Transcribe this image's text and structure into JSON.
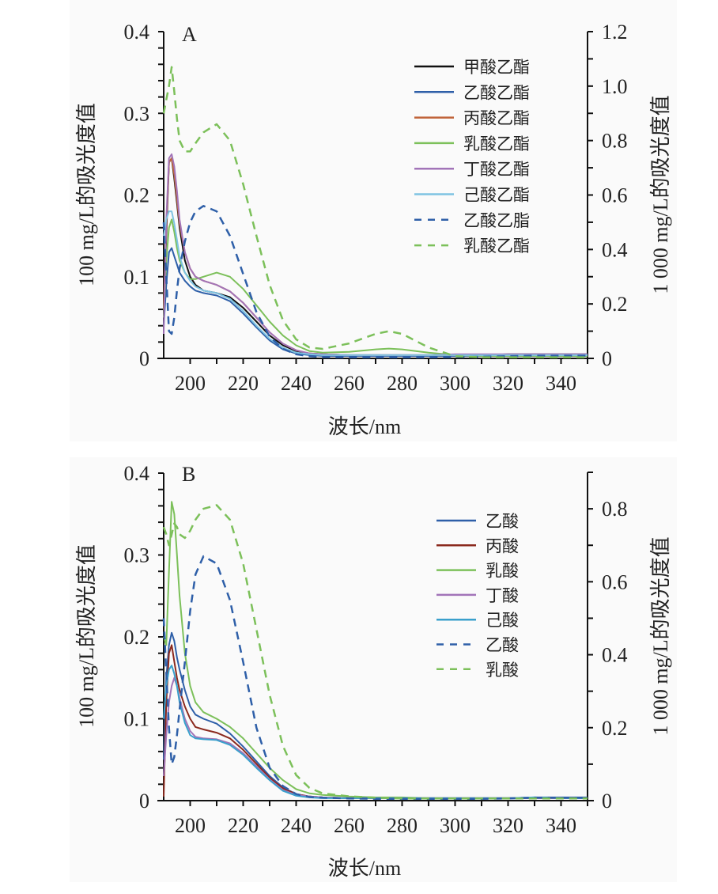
{
  "chart_data": [
    {
      "type": "line",
      "panel_label": "A",
      "xlabel": "波长/nm",
      "ylabel": "100 mg/L的吸光度值",
      "y2label": "1 000 mg/L的吸光度值",
      "xlim": [
        190,
        350
      ],
      "ylim": [
        0,
        0.4
      ],
      "y2lim": [
        0,
        1.2
      ],
      "xticks": [
        200,
        220,
        240,
        260,
        280,
        300,
        320,
        340
      ],
      "xtick_labels": [
        "200",
        "220",
        "240",
        "260",
        "280",
        "300",
        "320",
        "340"
      ],
      "yticks": [
        0,
        0.1,
        0.2,
        0.3,
        0.4
      ],
      "ytick_labels": [
        "0",
        "0.1",
        "0.2",
        "0.3",
        "0.4"
      ],
      "y2ticks": [
        0,
        0.2,
        0.4,
        0.6,
        0.8,
        1.0,
        1.2
      ],
      "y2tick_labels": [
        "0",
        "0.2",
        "0.4",
        "0.6",
        "0.8",
        "1.0",
        "1.2"
      ],
      "legend_position": "top-right",
      "x": [
        190,
        191,
        192,
        193,
        194,
        195,
        196,
        198,
        200,
        202,
        205,
        210,
        215,
        220,
        225,
        230,
        235,
        240,
        245,
        250,
        260,
        270,
        275,
        280,
        290,
        300,
        310,
        320,
        330,
        340,
        350
      ],
      "series": [
        {
          "name": "甲酸乙酯",
          "color": "#111111",
          "dash": "solid",
          "axis": "left",
          "values": [
            0.05,
            0.15,
            0.24,
            0.245,
            0.22,
            0.19,
            0.16,
            0.12,
            0.1,
            0.09,
            0.083,
            0.08,
            0.075,
            0.062,
            0.045,
            0.028,
            0.016,
            0.009,
            0.006,
            0.005,
            0.004,
            0.004,
            0.004,
            0.004,
            0.004,
            0.004,
            0.004,
            0.005,
            0.005,
            0.005,
            0.005
          ]
        },
        {
          "name": "乙酸乙酯",
          "color": "#2e5fa8",
          "dash": "solid",
          "axis": "left",
          "values": [
            0.04,
            0.09,
            0.13,
            0.135,
            0.125,
            0.115,
            0.105,
            0.095,
            0.088,
            0.083,
            0.08,
            0.077,
            0.07,
            0.055,
            0.038,
            0.022,
            0.011,
            0.006,
            0.004,
            0.003,
            0.003,
            0.003,
            0.003,
            0.003,
            0.003,
            0.003,
            0.003,
            0.003,
            0.003,
            0.003,
            0.003
          ]
        },
        {
          "name": "丙酸乙酯",
          "color": "#c0643a",
          "dash": "solid",
          "axis": "left",
          "values": [
            0.06,
            0.16,
            0.24,
            0.245,
            0.225,
            0.195,
            0.165,
            0.13,
            0.11,
            0.1,
            0.095,
            0.09,
            0.082,
            0.068,
            0.05,
            0.032,
            0.018,
            0.01,
            0.006,
            0.005,
            0.004,
            0.004,
            0.004,
            0.004,
            0.004,
            0.004,
            0.004,
            0.004,
            0.004,
            0.004,
            0.004
          ]
        },
        {
          "name": "乳酸乙酯",
          "color": "#7cc05a",
          "dash": "solid",
          "axis": "left",
          "values": [
            0.05,
            0.12,
            0.16,
            0.17,
            0.155,
            0.135,
            0.12,
            0.105,
            0.097,
            0.097,
            0.1,
            0.105,
            0.1,
            0.085,
            0.065,
            0.045,
            0.028,
            0.016,
            0.009,
            0.007,
            0.008,
            0.011,
            0.012,
            0.011,
            0.007,
            0.004,
            0.003,
            0.003,
            0.003,
            0.003,
            0.003
          ]
        },
        {
          "name": "丁酸乙酯",
          "color": "#a274b8",
          "dash": "solid",
          "axis": "left",
          "values": [
            0.03,
            0.17,
            0.245,
            0.25,
            0.235,
            0.205,
            0.17,
            0.13,
            0.11,
            0.1,
            0.095,
            0.09,
            0.082,
            0.068,
            0.05,
            0.032,
            0.018,
            0.01,
            0.006,
            0.005,
            0.004,
            0.004,
            0.004,
            0.004,
            0.004,
            0.005,
            0.005,
            0.005,
            0.005,
            0.005,
            0.005
          ]
        },
        {
          "name": "己酸乙酯",
          "color": "#7ec3e2",
          "dash": "solid",
          "axis": "left",
          "values": [
            0.15,
            0.17,
            0.18,
            0.18,
            0.165,
            0.145,
            0.125,
            0.105,
            0.095,
            0.088,
            0.083,
            0.08,
            0.073,
            0.058,
            0.04,
            0.024,
            0.013,
            0.007,
            0.005,
            0.004,
            0.004,
            0.004,
            0.004,
            0.004,
            0.004,
            0.004,
            0.004,
            0.004,
            0.004,
            0.004,
            0.004
          ]
        },
        {
          "name": "乙酸乙脂",
          "color": "#2e5fa8",
          "dash": "dashed",
          "axis": "right",
          "values": [
            0.5,
            0.3,
            0.1,
            0.09,
            0.15,
            0.25,
            0.33,
            0.43,
            0.5,
            0.54,
            0.56,
            0.54,
            0.45,
            0.31,
            0.17,
            0.08,
            0.035,
            0.015,
            0.008,
            0.005,
            0.004,
            0.004,
            0.004,
            0.004,
            0.004,
            0.005,
            0.006,
            0.008,
            0.01,
            0.01,
            0.01
          ]
        },
        {
          "name": "乳酸乙酯",
          "color": "#7cc05a",
          "dash": "dashed",
          "axis": "right",
          "values": [
            0.9,
            0.95,
            1.0,
            1.07,
            0.98,
            0.88,
            0.8,
            0.76,
            0.76,
            0.79,
            0.83,
            0.86,
            0.8,
            0.64,
            0.45,
            0.27,
            0.14,
            0.07,
            0.04,
            0.035,
            0.055,
            0.09,
            0.1,
            0.09,
            0.04,
            0.008,
            0.004,
            0.004,
            0.004,
            0.004,
            0.004
          ]
        }
      ]
    },
    {
      "type": "line",
      "panel_label": "B",
      "xlabel": "波长/nm",
      "ylabel": "100 mg/L的吸光度值",
      "y2label": "1 000 mg/L的吸光度值",
      "xlim": [
        190,
        350
      ],
      "ylim": [
        0,
        0.4
      ],
      "y2lim": [
        0,
        0.9
      ],
      "xticks": [
        200,
        220,
        240,
        260,
        280,
        300,
        320,
        340
      ],
      "xtick_labels": [
        "200",
        "220",
        "240",
        "260",
        "280",
        "300",
        "320",
        "340"
      ],
      "yticks": [
        0,
        0.1,
        0.2,
        0.3,
        0.4
      ],
      "ytick_labels": [
        "0",
        "0.1",
        "0.2",
        "0.3",
        "0.4"
      ],
      "y2ticks": [
        0,
        0.2,
        0.4,
        0.6,
        0.8
      ],
      "y2tick_labels": [
        "0",
        "0.2",
        "0.4",
        "0.6",
        "0.8"
      ],
      "legend_position": "top-right",
      "x": [
        190,
        191,
        192,
        193,
        194,
        195,
        196,
        198,
        200,
        202,
        205,
        210,
        215,
        220,
        225,
        230,
        235,
        240,
        245,
        250,
        260,
        270,
        280,
        290,
        300,
        310,
        320,
        330,
        340,
        350
      ],
      "series": [
        {
          "name": "乙酸",
          "color": "#2e5fa8",
          "dash": "solid",
          "axis": "left",
          "values": [
            0.05,
            0.15,
            0.19,
            0.205,
            0.195,
            0.175,
            0.16,
            0.135,
            0.115,
            0.105,
            0.1,
            0.094,
            0.082,
            0.066,
            0.048,
            0.03,
            0.016,
            0.008,
            0.005,
            0.004,
            0.003,
            0.003,
            0.003,
            0.003,
            0.003,
            0.003,
            0.003,
            0.004,
            0.004,
            0.004
          ]
        },
        {
          "name": "丙酸",
          "color": "#8b2a1e",
          "dash": "solid",
          "axis": "left",
          "values": [
            0.005,
            0.12,
            0.18,
            0.19,
            0.17,
            0.15,
            0.135,
            0.115,
            0.1,
            0.09,
            0.087,
            0.083,
            0.076,
            0.062,
            0.045,
            0.028,
            0.015,
            0.008,
            0.005,
            0.004,
            0.003,
            0.003,
            0.003,
            0.003,
            0.003,
            0.003,
            0.003,
            0.003,
            0.003,
            0.003
          ]
        },
        {
          "name": "乳酸",
          "color": "#7cc05a",
          "dash": "solid",
          "axis": "left",
          "values": [
            0.2,
            0.19,
            0.28,
            0.365,
            0.35,
            0.3,
            0.25,
            0.18,
            0.14,
            0.12,
            0.108,
            0.1,
            0.09,
            0.076,
            0.058,
            0.04,
            0.025,
            0.014,
            0.009,
            0.007,
            0.005,
            0.004,
            0.004,
            0.003,
            0.003,
            0.003,
            0.003,
            0.003,
            0.003,
            0.003
          ]
        },
        {
          "name": "丁酸",
          "color": "#a274b8",
          "dash": "solid",
          "axis": "left",
          "values": [
            0.03,
            0.08,
            0.12,
            0.14,
            0.15,
            0.14,
            0.125,
            0.1,
            0.085,
            0.078,
            0.076,
            0.075,
            0.07,
            0.058,
            0.042,
            0.026,
            0.013,
            0.007,
            0.005,
            0.004,
            0.003,
            0.003,
            0.003,
            0.003,
            0.003,
            0.003,
            0.003,
            0.003,
            0.003,
            0.003
          ]
        },
        {
          "name": "己酸",
          "color": "#3aa0cc",
          "dash": "solid",
          "axis": "left",
          "values": [
            0.1,
            0.14,
            0.16,
            0.165,
            0.155,
            0.14,
            0.12,
            0.095,
            0.08,
            0.076,
            0.075,
            0.074,
            0.068,
            0.056,
            0.04,
            0.025,
            0.012,
            0.006,
            0.004,
            0.003,
            0.003,
            0.003,
            0.003,
            0.003,
            0.003,
            0.003,
            0.003,
            0.004,
            0.003,
            0.003
          ]
        },
        {
          "name": "乙酸",
          "color": "#2e5fa8",
          "dash": "dashed",
          "axis": "right",
          "values": [
            0.5,
            0.35,
            0.2,
            0.1,
            0.12,
            0.18,
            0.25,
            0.38,
            0.52,
            0.62,
            0.67,
            0.65,
            0.55,
            0.38,
            0.2,
            0.09,
            0.04,
            0.018,
            0.01,
            0.008,
            0.006,
            0.005,
            0.005,
            0.005,
            0.005,
            0.005,
            0.006,
            0.008,
            0.008,
            0.008
          ]
        },
        {
          "name": "乳酸",
          "color": "#7cc05a",
          "dash": "dashed",
          "axis": "right",
          "values": [
            0.75,
            0.73,
            0.7,
            0.73,
            0.76,
            0.75,
            0.73,
            0.72,
            0.74,
            0.77,
            0.8,
            0.81,
            0.77,
            0.65,
            0.47,
            0.29,
            0.15,
            0.07,
            0.035,
            0.02,
            0.012,
            0.008,
            0.006,
            0.006,
            0.006,
            0.006,
            0.006,
            0.006,
            0.006,
            0.006
          ]
        }
      ]
    }
  ]
}
